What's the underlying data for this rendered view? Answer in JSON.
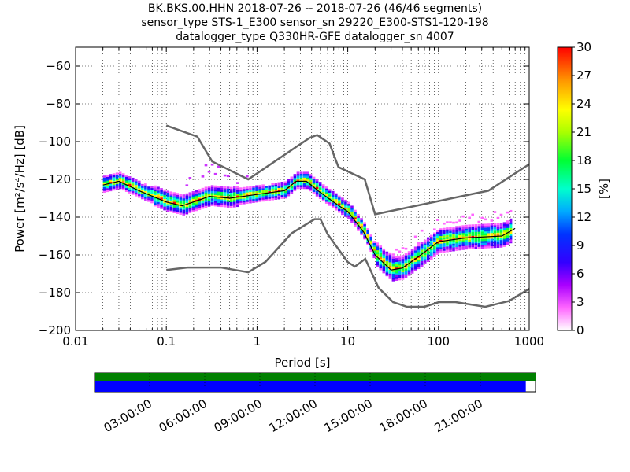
{
  "title_lines": [
    "BK.BKS.00.HHN   2018-07-26 -- 2018-07-26  (46/46 segments)",
    "sensor_type STS-1_E300 sensor_sn 29220_E300-STS1-120-198",
    "datalogger_type Q330HR-GFE datalogger_sn 4007"
  ],
  "colors": {
    "noise_model": "#666666",
    "mean_line": "#000000",
    "green_bar": "#008000",
    "blue_bar": "#0000ff"
  },
  "chart_data": {
    "type": "heatmap",
    "xlabel": "Period [s]",
    "ylabel": "Power [m²/s⁴/Hz] [dB]",
    "x_scale": "log",
    "xlim": [
      0.01,
      1000
    ],
    "ylim": [
      -200,
      -50
    ],
    "x_ticks": [
      "0.01",
      "0.1",
      "1",
      "10",
      "100",
      "1000"
    ],
    "y_ticks": [
      "−60",
      "−80",
      "−100",
      "−120",
      "−140",
      "−160",
      "−180",
      "−200"
    ],
    "y_tick_values": [
      -60,
      -80,
      -100,
      -120,
      -140,
      -160,
      -180,
      -200
    ],
    "colorbar": {
      "label": "[%]",
      "range": [
        0,
        30
      ],
      "ticks": [
        "0",
        "3",
        "6",
        "9",
        "12",
        "15",
        "18",
        "21",
        "24",
        "27",
        "30"
      ]
    },
    "noise_models": {
      "high": {
        "period": [
          0.1,
          0.22,
          0.32,
          0.8,
          3.8,
          4.6,
          6.3,
          7.9,
          15.4,
          20,
          354.8,
          1000
        ],
        "power": [
          -91.5,
          -97.4,
          -110.5,
          -120,
          -98,
          -96.5,
          -101,
          -113.5,
          -120,
          -138.5,
          -126,
          -112
        ]
      },
      "low": {
        "period": [
          0.1,
          0.17,
          0.4,
          0.8,
          1.24,
          2.4,
          4.3,
          5,
          6,
          10,
          12,
          15.6,
          21.9,
          31.6,
          45,
          70,
          101,
          154,
          328,
          600,
          1000
        ],
        "power": [
          -168,
          -166.7,
          -166.7,
          -169.2,
          -163.7,
          -148.6,
          -141.1,
          -141.1,
          -149,
          -163.8,
          -166.2,
          -162.1,
          -177.5,
          -185,
          -187.5,
          -187.5,
          -185,
          -185,
          -187.5,
          -184.4,
          -178
        ]
      }
    },
    "mean": {
      "period": [
        0.02,
        0.03,
        0.05,
        0.1,
        0.15,
        0.3,
        0.5,
        1,
        2,
        2.7,
        3.5,
        5,
        8,
        10,
        15,
        20,
        30,
        40,
        60,
        100,
        200,
        500,
        700
      ],
      "power": [
        -123,
        -121,
        -126,
        -132,
        -134,
        -129,
        -130,
        -128,
        -126,
        -121,
        -121,
        -127,
        -134,
        -137,
        -148,
        -160,
        -168,
        -167,
        -161,
        -153,
        -151,
        -150,
        -146
      ]
    },
    "time_axis": {
      "labels": [
        "03:00:00",
        "06:00:00",
        "09:00:00",
        "12:00:00",
        "15:00:00",
        "18:00:00",
        "21:00:00"
      ],
      "green_fraction": 1.0,
      "blue_fraction": 0.978
    }
  }
}
